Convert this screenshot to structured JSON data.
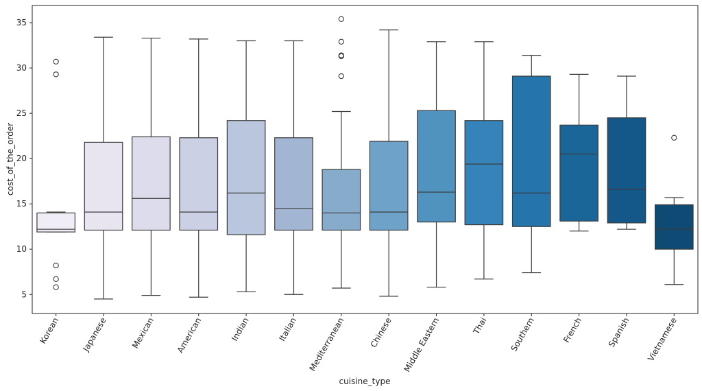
{
  "chart_data": {
    "type": "boxplot",
    "xlabel": "cuisine_type",
    "ylabel": "cost_of_the_order",
    "ylim": [
      2.9,
      36.9
    ],
    "yticks": [
      5,
      10,
      15,
      20,
      25,
      30,
      35
    ],
    "grid": false,
    "legend": "none",
    "categories": [
      "Korean",
      "Japanese",
      "Mexican",
      "American",
      "Indian",
      "Italian",
      "Mediterranean",
      "Chinese",
      "Middle Eastern",
      "Thai",
      "Southern",
      "French",
      "Spanish",
      "Vietnamese"
    ],
    "boxes": [
      {
        "category": "Korean",
        "whisker_low": 11.9,
        "q1": 11.9,
        "median": 12.2,
        "q3": 14.0,
        "whisker_high": 14.1,
        "outliers": [
          30.7,
          29.3,
          8.2,
          6.7,
          5.8
        ],
        "color": "#f0edf6"
      },
      {
        "category": "Japanese",
        "whisker_low": 4.5,
        "q1": 12.1,
        "median": 14.1,
        "q3": 21.8,
        "whisker_high": 33.4,
        "outliers": [],
        "color": "#e8e5f1"
      },
      {
        "category": "Mexican",
        "whisker_low": 4.9,
        "q1": 12.1,
        "median": 15.6,
        "q3": 22.4,
        "whisker_high": 33.3,
        "outliers": [],
        "color": "#dcdcec"
      },
      {
        "category": "American",
        "whisker_low": 4.7,
        "q1": 12.1,
        "median": 14.1,
        "q3": 22.3,
        "whisker_high": 33.2,
        "outliers": [],
        "color": "#ccd0e4"
      },
      {
        "category": "Indian",
        "whisker_low": 5.3,
        "q1": 11.6,
        "median": 16.2,
        "q3": 24.2,
        "whisker_high": 33.0,
        "outliers": [],
        "color": "#b9c6dd"
      },
      {
        "category": "Italian",
        "whisker_low": 5.0,
        "q1": 12.1,
        "median": 14.5,
        "q3": 22.3,
        "whisker_high": 33.0,
        "outliers": [],
        "color": "#a2b6d4"
      },
      {
        "category": "Mediterranean",
        "whisker_low": 5.7,
        "q1": 12.1,
        "median": 14.0,
        "q3": 18.8,
        "whisker_high": 25.2,
        "outliers": [
          35.4,
          32.9,
          31.4,
          31.3,
          29.1
        ],
        "color": "#87abcb"
      },
      {
        "category": "Chinese",
        "whisker_low": 4.8,
        "q1": 12.1,
        "median": 14.1,
        "q3": 21.9,
        "whisker_high": 34.2,
        "outliers": [],
        "color": "#6ea2c8"
      },
      {
        "category": "Middle Eastern",
        "whisker_low": 5.8,
        "q1": 13.0,
        "median": 16.3,
        "q3": 25.3,
        "whisker_high": 32.9,
        "outliers": [],
        "color": "#4f93be"
      },
      {
        "category": "Thai",
        "whisker_low": 6.7,
        "q1": 12.7,
        "median": 19.4,
        "q3": 24.2,
        "whisker_high": 32.9,
        "outliers": [],
        "color": "#3583b9"
      },
      {
        "category": "Southern",
        "whisker_low": 7.4,
        "q1": 12.5,
        "median": 16.2,
        "q3": 29.1,
        "whisker_high": 31.4,
        "outliers": [],
        "color": "#2574ab"
      },
      {
        "category": "French",
        "whisker_low": 12.0,
        "q1": 13.1,
        "median": 20.5,
        "q3": 23.7,
        "whisker_high": 29.3,
        "outliers": [],
        "color": "#1a6699"
      },
      {
        "category": "Spanish",
        "whisker_low": 12.2,
        "q1": 12.9,
        "median": 16.6,
        "q3": 24.5,
        "whisker_high": 29.1,
        "outliers": [],
        "color": "#14588a"
      },
      {
        "category": "Vietnamese",
        "whisker_low": 6.1,
        "q1": 10.0,
        "median": 12.2,
        "q3": 14.9,
        "whisker_high": 15.7,
        "outliers": [
          22.3
        ],
        "color": "#0e4a73"
      }
    ]
  }
}
